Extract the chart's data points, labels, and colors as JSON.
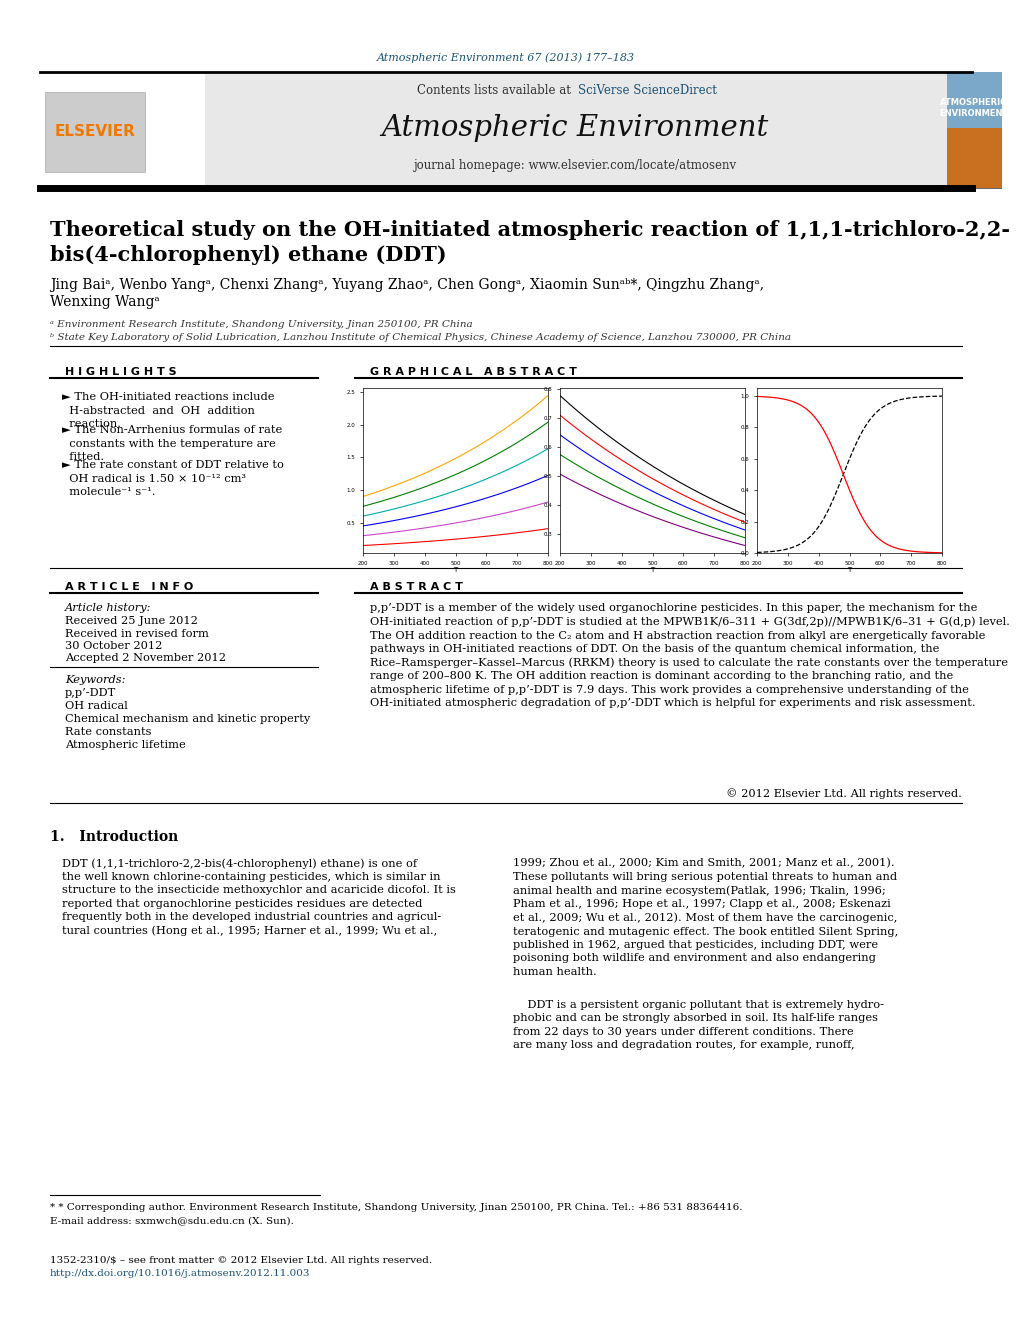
{
  "page_title": "Atmospheric Environment 67 (2013) 177–183",
  "journal_name": "Atmospheric Environment",
  "journal_homepage": "journal homepage: www.elsevier.com/locate/atmosenv",
  "contents_line": "Contents lists available at SciVerse ScienceDirect",
  "paper_title": "Theoretical study on the OH-initiated atmospheric reaction of 1,1,1-trichloro-2,2-\nbis(4-chlorophenyl) ethane (DDT)",
  "authors_line1": "Jing Baiᵃ, Wenbo Yangᵃ, Chenxi Zhangᵃ, Yuyang Zhaoᵃ, Chen Gongᵃ, Xiaomin Sunᵃᵇ*, Qingzhu Zhangᵃ,",
  "authors_line2": "Wenxing Wangᵃ",
  "affil_a": "ᵃ Environment Research Institute, Shandong University, Jinan 250100, PR China",
  "affil_b": "ᵇ State Key Laboratory of Solid Lubrication, Lanzhou Institute of Chemical Physics, Chinese Academy of Science, Lanzhou 730000, PR China",
  "highlights_title": "H I G H L I G H T S",
  "graphical_abstract_title": "G R A P H I C A L   A B S T R A C T",
  "article_info_title": "A R T I C L E   I N F O",
  "article_history_title": "Article history:",
  "received": "Received 25 June 2012",
  "received_revised": "Received in revised form",
  "revised_date": "30 October 2012",
  "accepted": "Accepted 2 November 2012",
  "keywords_title": "Keywords:",
  "keywords": [
    "p,p’-DDT",
    "OH radical",
    "Chemical mechanism and kinetic property",
    "Rate constants",
    "Atmospheric lifetime"
  ],
  "abstract_title": "A B S T R A C T",
  "abstract_text": "p,p’-DDT is a member of the widely used organochlorine pesticides. In this paper, the mechanism for the OH-initiated reaction of p,p’-DDT is studied at the MPWB1K/6–311 + G(3df,2p)//MPWB1K/6–31 + G(d,p) level. The OH addition reaction to the C₂ atom and H abstraction reaction from alkyl are energetically favorable pathways in OH-initiated reactions of DDT. On the basis of the quantum chemical information, the Rice–Ramsperger–Kassel–Marcus (RRKM) theory is used to calculate the rate constants over the temperature range of 200–800 K. The OH addition reaction is dominant according to the branching ratio, and the atmospheric lifetime of p,p’-DDT is 7.9 days. This work provides a comprehensive understanding of the OH-initiated atmospheric degradation of p,p’-DDT which is helpful for experiments and risk assessment.",
  "copyright": "© 2012 Elsevier Ltd. All rights reserved.",
  "intro_title": "1.   Introduction",
  "intro_col1_p1": "DDT (1,1,1-trichloro-2,2-bis(4-chlorophenyl) ethane) is one of\nthe well known chlorine-containing pesticides, which is similar in\nstructure to the insecticide methoxychlor and acaricide dicofol. It is\nreported that organochlorine pesticides residues are detected\nfrequently both in the developed industrial countries and agricul-\ntural countries (Hong et al., 1995; Harner et al., 1999; Wu et al.,",
  "intro_col2_p1": "1999; Zhou et al., 2000; Kim and Smith, 2001; Manz et al., 2001).\nThese pollutants will bring serious potential threats to human and\nanimal health and marine ecosystem(Patlak, 1996; Tkalin, 1996;\nPham et al., 1996; Hope et al., 1997; Clapp et al., 2008; Eskenazi\net al., 2009; Wu et al., 2012). Most of them have the carcinogenic,\nteratogenic and mutagenic effect. The book entitled Silent Spring,\npublished in 1962, argued that pesticides, including DDT, were\npoisoning both wildlife and environment and also endangering\nhuman health.",
  "intro_col2_p2": "    DDT is a persistent organic pollutant that is extremely hydro-\nphobic and can be strongly absorbed in soil. Its half-life ranges\nfrom 22 days to 30 years under different conditions. There\nare many loss and degradation routes, for example, runoff,",
  "footnote1": "* Corresponding author. Environment Research Institute, Shandong University, Jinan 250100, PR China. Tel.: +86 531 88364416.",
  "footnote2": "E-mail address: sxmwch@sdu.edu.cn (X. Sun).",
  "footnote3": "1352-2310/$ – see front matter © 2012 Elsevier Ltd. All rights reserved.",
  "footnote4": "http://dx.doi.org/10.1016/j.atmosenv.2012.11.003",
  "bg_color": "#ffffff",
  "header_bg": "#e8e8e8",
  "elsevier_color": "#f07800",
  "link_color": "#1a5276",
  "black": "#000000"
}
